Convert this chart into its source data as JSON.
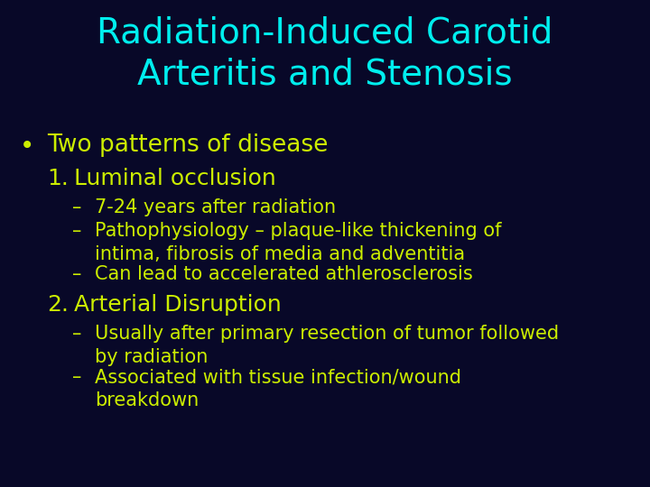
{
  "background_color": "#080828",
  "title_line1": "Radiation-Induced Carotid",
  "title_line2": "Arteritis and Stenosis",
  "title_color": "#00EEEE",
  "title_fontsize": 28,
  "bullet_color": "#CCEE00",
  "bullet_fontsize": 19,
  "number_fontsize": 18,
  "sub_fontsize": 15,
  "bullet_text": "Two patterns of disease",
  "items": [
    {
      "number": "1.",
      "heading": "Luminal occlusion",
      "subs": [
        "7-24 years after radiation",
        "Pathophysiology – plaque-like thickening of\nintima, fibrosis of media and adventitia",
        "Can lead to accelerated athlerosclerosis"
      ]
    },
    {
      "number": "2.",
      "heading": "Arterial Disruption",
      "subs": [
        "Usually after primary resection of tumor followed\nby radiation",
        "Associated with tissue infection/wound\nbreakdown"
      ]
    }
  ]
}
